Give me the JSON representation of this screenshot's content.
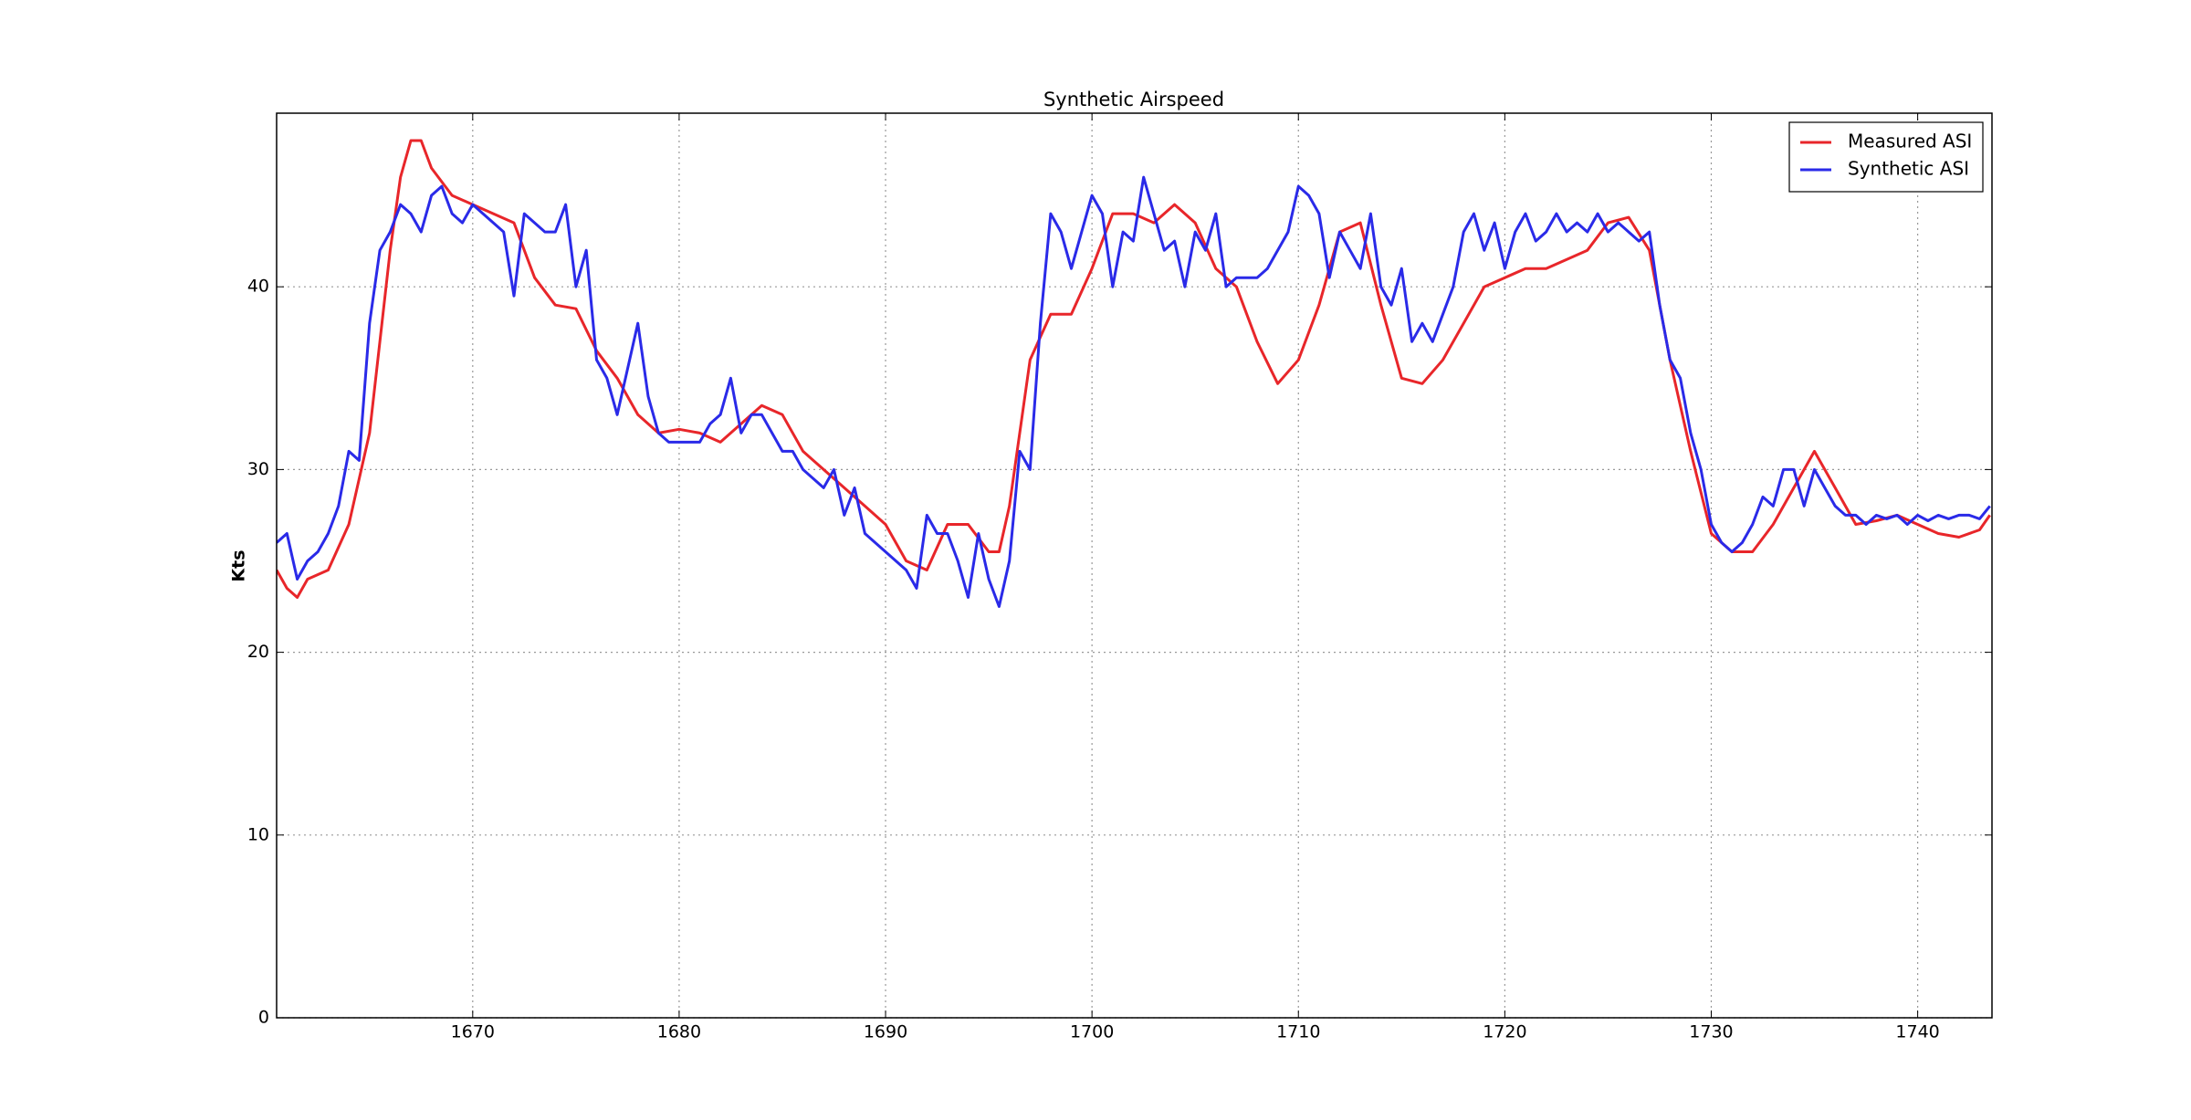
{
  "chart_data": {
    "type": "line",
    "title": "Synthetic Airspeed",
    "y_label": "Kts",
    "xlim": [
      1660.5,
      1743.6
    ],
    "ylim": [
      0,
      49.5
    ],
    "xticks": [
      1670,
      1680,
      1690,
      1700,
      1710,
      1720,
      1730,
      1740
    ],
    "yticks": [
      0,
      10,
      20,
      30,
      40
    ],
    "grid": true,
    "legend": "upper right",
    "series": [
      {
        "name": "Measured ASI",
        "color": "#e8262a",
        "x": [
          1660.5,
          1661,
          1661.5,
          1662,
          1663,
          1664,
          1665,
          1666,
          1666.5,
          1667,
          1667.5,
          1668,
          1669,
          1670,
          1671,
          1672,
          1673,
          1674,
          1675,
          1676,
          1677,
          1678,
          1679,
          1680,
          1681,
          1682,
          1683,
          1684,
          1685,
          1686,
          1687,
          1688,
          1689,
          1690,
          1691,
          1692,
          1693,
          1694,
          1695,
          1695.5,
          1696,
          1697,
          1698,
          1699,
          1700,
          1701,
          1702,
          1703,
          1704,
          1705,
          1706,
          1707,
          1708,
          1709,
          1710,
          1711,
          1712,
          1713,
          1714,
          1715,
          1716,
          1717,
          1718,
          1719,
          1720,
          1721,
          1722,
          1723,
          1724,
          1725,
          1726,
          1727,
          1728,
          1729,
          1730,
          1731,
          1732,
          1733,
          1734,
          1735,
          1736,
          1737,
          1738,
          1739,
          1740,
          1741,
          1742,
          1743,
          1743.5
        ],
        "values": [
          24.5,
          23.5,
          23,
          24,
          24.5,
          27,
          32,
          42,
          46,
          48,
          48,
          46.5,
          45,
          44.5,
          44,
          43.5,
          40.5,
          39,
          38.8,
          36.5,
          35,
          33,
          32,
          32.2,
          32,
          31.5,
          32.5,
          33.5,
          33,
          31,
          30,
          29,
          28,
          27,
          25,
          24.5,
          27,
          27,
          25.5,
          25.5,
          28,
          36,
          38.5,
          38.5,
          41,
          44,
          44,
          43.5,
          44.5,
          43.5,
          41,
          40,
          37,
          34.7,
          36,
          39,
          43,
          43.5,
          39,
          35,
          34.7,
          36,
          38,
          40,
          40.5,
          41,
          41,
          41.5,
          42,
          43.5,
          43.8,
          42,
          36,
          31,
          26.5,
          25.5,
          25.5,
          27,
          29,
          31,
          29,
          27,
          27.2,
          27.5,
          27,
          26.5,
          26.3,
          26.7,
          27.5
        ]
      },
      {
        "name": "Synthetic ASI",
        "color": "#2a2ae8",
        "x": [
          1660.5,
          1661,
          1661.5,
          1662,
          1662.5,
          1663,
          1663.5,
          1664,
          1664.5,
          1665,
          1665.5,
          1666,
          1666.5,
          1667,
          1667.5,
          1668,
          1668.5,
          1669,
          1669.5,
          1670,
          1670.5,
          1671,
          1671.5,
          1672,
          1672.5,
          1673,
          1673.5,
          1674,
          1674.5,
          1675,
          1675.5,
          1676,
          1676.5,
          1677,
          1677.5,
          1678,
          1678.5,
          1679,
          1679.5,
          1680,
          1680.5,
          1681,
          1681.5,
          1682,
          1682.5,
          1683,
          1683.5,
          1684,
          1684.5,
          1685,
          1685.5,
          1686,
          1686.5,
          1687,
          1687.5,
          1688,
          1688.5,
          1689,
          1689.5,
          1690,
          1690.5,
          1691,
          1691.5,
          1692,
          1692.5,
          1693,
          1693.5,
          1694,
          1694.5,
          1695,
          1695.5,
          1696,
          1696.5,
          1697,
          1697.5,
          1698,
          1698.5,
          1699,
          1699.5,
          1700,
          1700.5,
          1701,
          1701.5,
          1702,
          1702.5,
          1703,
          1703.5,
          1704,
          1704.5,
          1705,
          1705.5,
          1706,
          1706.5,
          1707,
          1707.5,
          1708,
          1708.5,
          1709,
          1709.5,
          1710,
          1710.5,
          1711,
          1711.5,
          1712,
          1712.5,
          1713,
          1713.5,
          1714,
          1714.5,
          1715,
          1715.5,
          1716,
          1716.5,
          1717,
          1717.5,
          1718,
          1718.5,
          1719,
          1719.5,
          1720,
          1720.5,
          1721,
          1721.5,
          1722,
          1722.5,
          1723,
          1723.5,
          1724,
          1724.5,
          1725,
          1725.5,
          1726,
          1726.5,
          1727,
          1727.5,
          1728,
          1728.5,
          1729,
          1729.5,
          1730,
          1730.5,
          1731,
          1731.5,
          1732,
          1732.5,
          1733,
          1733.5,
          1734,
          1734.5,
          1735,
          1735.5,
          1736,
          1736.5,
          1737,
          1737.5,
          1738,
          1738.5,
          1739,
          1739.5,
          1740,
          1740.5,
          1741,
          1741.5,
          1742,
          1742.5,
          1743,
          1743.5
        ],
        "values": [
          26,
          26.5,
          24,
          25,
          25.5,
          26.5,
          28,
          31,
          30.5,
          38,
          42,
          43,
          44.5,
          44,
          43,
          45,
          45.5,
          44,
          43.5,
          44.5,
          44,
          43.5,
          43,
          39.5,
          44,
          43.5,
          43,
          43,
          44.5,
          40,
          42,
          36,
          35,
          33,
          35.5,
          38,
          34,
          32,
          31.5,
          31.5,
          31.5,
          31.5,
          32.5,
          33,
          35,
          32,
          33,
          33,
          32,
          31,
          31,
          30,
          29.5,
          29,
          30,
          27.5,
          29,
          26.5,
          26,
          25.5,
          25,
          24.5,
          23.5,
          27.5,
          26.5,
          26.5,
          25,
          23,
          26.5,
          24,
          22.5,
          25,
          31,
          30,
          38,
          44,
          43,
          41,
          43,
          45,
          44,
          40,
          43,
          42.5,
          46,
          44,
          42,
          42.5,
          40,
          43,
          42,
          44,
          40,
          40.5,
          40.5,
          40.5,
          41,
          42,
          43,
          45.5,
          45,
          44,
          40.5,
          43,
          42,
          41,
          44,
          40,
          39,
          41,
          37,
          38,
          37,
          38.5,
          40,
          43,
          44,
          42,
          43.5,
          41,
          43,
          44,
          42.5,
          43,
          44,
          43,
          43.5,
          43,
          44,
          43,
          43.5,
          43,
          42.5,
          43,
          39,
          36,
          35,
          32,
          30,
          27,
          26,
          25.5,
          26,
          27,
          28.5,
          28,
          30,
          30,
          28,
          30,
          29,
          28,
          27.5,
          27.5,
          27,
          27.5,
          27.3,
          27.5,
          27,
          27.5,
          27.2,
          27.5,
          27.3,
          27.5,
          27.5,
          27.3,
          28
        ]
      }
    ]
  }
}
